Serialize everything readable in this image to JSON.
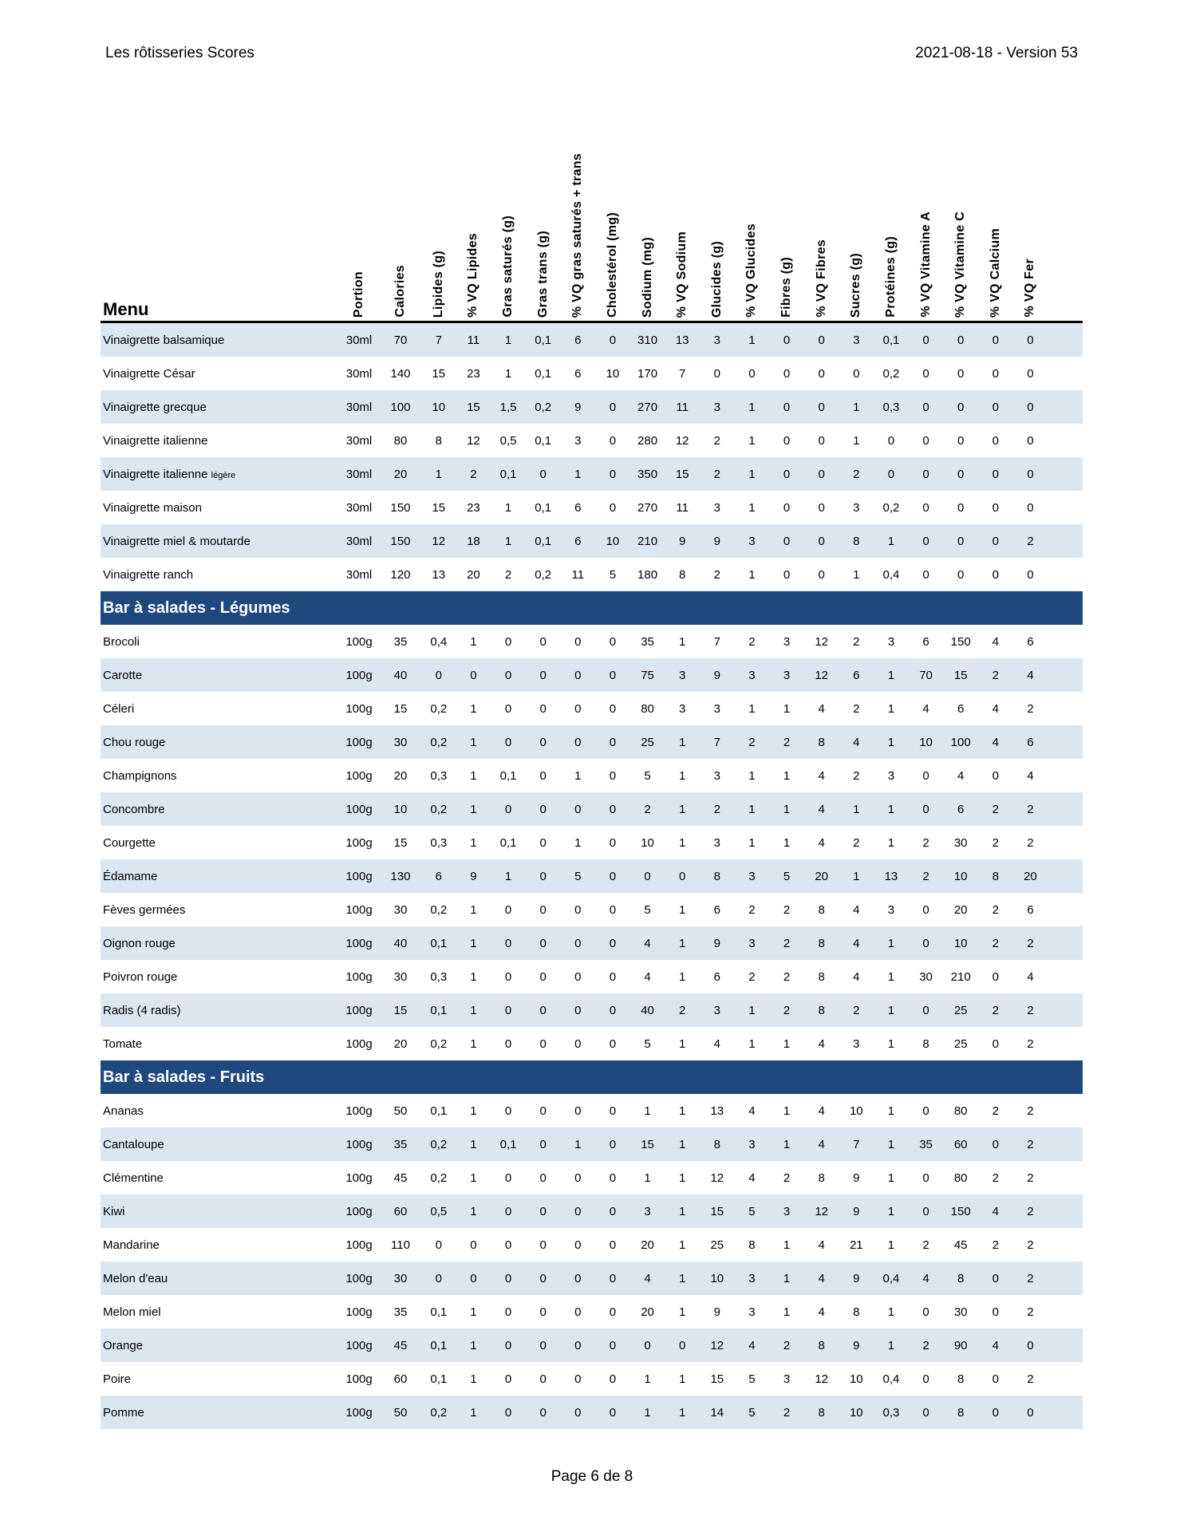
{
  "header": {
    "left": "Les rôtisseries Scores",
    "right": "2021-08-18 - Version 53"
  },
  "menu_label": "Menu",
  "columns": [
    "Portion",
    "Calories",
    "Lipides (g)",
    "% VQ Lipides",
    "Gras saturés (g)",
    "Gras trans (g)",
    "% VQ gras saturés + trans",
    "Cholestérol (mg)",
    "Sodium (mg)",
    "% VQ Sodium",
    "Glucides (g)",
    "% VQ Glucides",
    "Fibres (g)",
    "% VQ Fibres",
    "Sucres (g)",
    "Protéines (g)",
    "% VQ Vitamine A",
    "% VQ Vitamine C",
    "% VQ Calcium",
    "% VQ Fer"
  ],
  "colors": {
    "section_bg": "#1f497d",
    "row_shade": "#dce6f1"
  },
  "sections": [
    {
      "title": "",
      "rows": [
        {
          "name": "Vinaigrette balsamique",
          "values": [
            "30ml",
            "70",
            "7",
            "11",
            "1",
            "0,1",
            "6",
            "0",
            "310",
            "13",
            "3",
            "1",
            "0",
            "0",
            "3",
            "0,1",
            "0",
            "0",
            "0",
            "0"
          ]
        },
        {
          "name": "Vinaigrette César",
          "values": [
            "30ml",
            "140",
            "15",
            "23",
            "1",
            "0,1",
            "6",
            "10",
            "170",
            "7",
            "0",
            "0",
            "0",
            "0",
            "0",
            "0,2",
            "0",
            "0",
            "0",
            "0"
          ]
        },
        {
          "name": "Vinaigrette grecque",
          "values": [
            "30ml",
            "100",
            "10",
            "15",
            "1,5",
            "0,2",
            "9",
            "0",
            "270",
            "11",
            "3",
            "1",
            "0",
            "0",
            "1",
            "0,3",
            "0",
            "0",
            "0",
            "0"
          ]
        },
        {
          "name": "Vinaigrette italienne",
          "values": [
            "30ml",
            "80",
            "8",
            "12",
            "0,5",
            "0,1",
            "3",
            "0",
            "280",
            "12",
            "2",
            "1",
            "0",
            "0",
            "1",
            "0",
            "0",
            "0",
            "0",
            "0"
          ]
        },
        {
          "name": "Vinaigrette italienne",
          "note": "légère",
          "values": [
            "30ml",
            "20",
            "1",
            "2",
            "0,1",
            "0",
            "1",
            "0",
            "350",
            "15",
            "2",
            "1",
            "0",
            "0",
            "2",
            "0",
            "0",
            "0",
            "0",
            "0"
          ]
        },
        {
          "name": "Vinaigrette maison",
          "values": [
            "30ml",
            "150",
            "15",
            "23",
            "1",
            "0,1",
            "6",
            "0",
            "270",
            "11",
            "3",
            "1",
            "0",
            "0",
            "3",
            "0,2",
            "0",
            "0",
            "0",
            "0"
          ]
        },
        {
          "name": "Vinaigrette miel & moutarde",
          "values": [
            "30ml",
            "150",
            "12",
            "18",
            "1",
            "0,1",
            "6",
            "10",
            "210",
            "9",
            "9",
            "3",
            "0",
            "0",
            "8",
            "1",
            "0",
            "0",
            "0",
            "2"
          ]
        },
        {
          "name": "Vinaigrette ranch",
          "values": [
            "30ml",
            "120",
            "13",
            "20",
            "2",
            "0,2",
            "11",
            "5",
            "180",
            "8",
            "2",
            "1",
            "0",
            "0",
            "1",
            "0,4",
            "0",
            "0",
            "0",
            "0"
          ]
        }
      ]
    },
    {
      "title": "Bar à salades - Légumes",
      "rows": [
        {
          "name": "Brocoli",
          "values": [
            "100g",
            "35",
            "0,4",
            "1",
            "0",
            "0",
            "0",
            "0",
            "35",
            "1",
            "7",
            "2",
            "3",
            "12",
            "2",
            "3",
            "6",
            "150",
            "4",
            "6"
          ]
        },
        {
          "name": "Carotte",
          "values": [
            "100g",
            "40",
            "0",
            "0",
            "0",
            "0",
            "0",
            "0",
            "75",
            "3",
            "9",
            "3",
            "3",
            "12",
            "6",
            "1",
            "70",
            "15",
            "2",
            "4"
          ]
        },
        {
          "name": "Céleri",
          "values": [
            "100g",
            "15",
            "0,2",
            "1",
            "0",
            "0",
            "0",
            "0",
            "80",
            "3",
            "3",
            "1",
            "1",
            "4",
            "2",
            "1",
            "4",
            "6",
            "4",
            "2"
          ]
        },
        {
          "name": "Chou rouge",
          "values": [
            "100g",
            "30",
            "0,2",
            "1",
            "0",
            "0",
            "0",
            "0",
            "25",
            "1",
            "7",
            "2",
            "2",
            "8",
            "4",
            "1",
            "10",
            "100",
            "4",
            "6"
          ]
        },
        {
          "name": "Champignons",
          "values": [
            "100g",
            "20",
            "0,3",
            "1",
            "0,1",
            "0",
            "1",
            "0",
            "5",
            "1",
            "3",
            "1",
            "1",
            "4",
            "2",
            "3",
            "0",
            "4",
            "0",
            "4"
          ]
        },
        {
          "name": "Concombre",
          "values": [
            "100g",
            "10",
            "0,2",
            "1",
            "0",
            "0",
            "0",
            "0",
            "2",
            "1",
            "2",
            "1",
            "1",
            "4",
            "1",
            "1",
            "0",
            "6",
            "2",
            "2"
          ]
        },
        {
          "name": "Courgette",
          "values": [
            "100g",
            "15",
            "0,3",
            "1",
            "0,1",
            "0",
            "1",
            "0",
            "10",
            "1",
            "3",
            "1",
            "1",
            "4",
            "2",
            "1",
            "2",
            "30",
            "2",
            "2"
          ]
        },
        {
          "name": "Édamame",
          "values": [
            "100g",
            "130",
            "6",
            "9",
            "1",
            "0",
            "5",
            "0",
            "0",
            "0",
            "8",
            "3",
            "5",
            "20",
            "1",
            "13",
            "2",
            "10",
            "8",
            "20"
          ]
        },
        {
          "name": "Fèves germées",
          "values": [
            "100g",
            "30",
            "0,2",
            "1",
            "0",
            "0",
            "0",
            "0",
            "5",
            "1",
            "6",
            "2",
            "2",
            "8",
            "4",
            "3",
            "0",
            "20",
            "2",
            "6"
          ]
        },
        {
          "name": "Oignon rouge",
          "values": [
            "100g",
            "40",
            "0,1",
            "1",
            "0",
            "0",
            "0",
            "0",
            "4",
            "1",
            "9",
            "3",
            "2",
            "8",
            "4",
            "1",
            "0",
            "10",
            "2",
            "2"
          ]
        },
        {
          "name": "Poivron rouge",
          "values": [
            "100g",
            "30",
            "0,3",
            "1",
            "0",
            "0",
            "0",
            "0",
            "4",
            "1",
            "6",
            "2",
            "2",
            "8",
            "4",
            "1",
            "30",
            "210",
            "0",
            "4"
          ]
        },
        {
          "name": "Radis (4 radis)",
          "values": [
            "100g",
            "15",
            "0,1",
            "1",
            "0",
            "0",
            "0",
            "0",
            "40",
            "2",
            "3",
            "1",
            "2",
            "8",
            "2",
            "1",
            "0",
            "25",
            "2",
            "2"
          ]
        },
        {
          "name": "Tomate",
          "values": [
            "100g",
            "20",
            "0,2",
            "1",
            "0",
            "0",
            "0",
            "0",
            "5",
            "1",
            "4",
            "1",
            "1",
            "4",
            "3",
            "1",
            "8",
            "25",
            "0",
            "2"
          ]
        }
      ]
    },
    {
      "title": "Bar à salades - Fruits",
      "rows": [
        {
          "name": "Ananas",
          "values": [
            "100g",
            "50",
            "0,1",
            "1",
            "0",
            "0",
            "0",
            "0",
            "1",
            "1",
            "13",
            "4",
            "1",
            "4",
            "10",
            "1",
            "0",
            "80",
            "2",
            "2"
          ]
        },
        {
          "name": "Cantaloupe",
          "values": [
            "100g",
            "35",
            "0,2",
            "1",
            "0,1",
            "0",
            "1",
            "0",
            "15",
            "1",
            "8",
            "3",
            "1",
            "4",
            "7",
            "1",
            "35",
            "60",
            "0",
            "2"
          ]
        },
        {
          "name": "Clémentine",
          "values": [
            "100g",
            "45",
            "0,2",
            "1",
            "0",
            "0",
            "0",
            "0",
            "1",
            "1",
            "12",
            "4",
            "2",
            "8",
            "9",
            "1",
            "0",
            "80",
            "2",
            "2"
          ]
        },
        {
          "name": "Kiwi",
          "values": [
            "100g",
            "60",
            "0,5",
            "1",
            "0",
            "0",
            "0",
            "0",
            "3",
            "1",
            "15",
            "5",
            "3",
            "12",
            "9",
            "1",
            "0",
            "150",
            "4",
            "2"
          ]
        },
        {
          "name": "Mandarine",
          "values": [
            "100g",
            "110",
            "0",
            "0",
            "0",
            "0",
            "0",
            "0",
            "20",
            "1",
            "25",
            "8",
            "1",
            "4",
            "21",
            "1",
            "2",
            "45",
            "2",
            "2"
          ]
        },
        {
          "name": "Melon d'eau",
          "values": [
            "100g",
            "30",
            "0",
            "0",
            "0",
            "0",
            "0",
            "0",
            "4",
            "1",
            "10",
            "3",
            "1",
            "4",
            "9",
            "0,4",
            "4",
            "8",
            "0",
            "2"
          ]
        },
        {
          "name": "Melon miel",
          "values": [
            "100g",
            "35",
            "0,1",
            "1",
            "0",
            "0",
            "0",
            "0",
            "20",
            "1",
            "9",
            "3",
            "1",
            "4",
            "8",
            "1",
            "0",
            "30",
            "0",
            "2"
          ]
        },
        {
          "name": "Orange",
          "values": [
            "100g",
            "45",
            "0,1",
            "1",
            "0",
            "0",
            "0",
            "0",
            "0",
            "0",
            "12",
            "4",
            "2",
            "8",
            "9",
            "1",
            "2",
            "90",
            "4",
            "0"
          ]
        },
        {
          "name": "Poire",
          "values": [
            "100g",
            "60",
            "0,1",
            "1",
            "0",
            "0",
            "0",
            "0",
            "1",
            "1",
            "15",
            "5",
            "3",
            "12",
            "10",
            "0,4",
            "0",
            "8",
            "0",
            "2"
          ]
        },
        {
          "name": "Pomme",
          "values": [
            "100g",
            "50",
            "0,2",
            "1",
            "0",
            "0",
            "0",
            "0",
            "1",
            "1",
            "14",
            "5",
            "2",
            "8",
            "10",
            "0,3",
            "0",
            "8",
            "0",
            "0"
          ]
        }
      ]
    }
  ],
  "footer": "Page 6 de 8"
}
